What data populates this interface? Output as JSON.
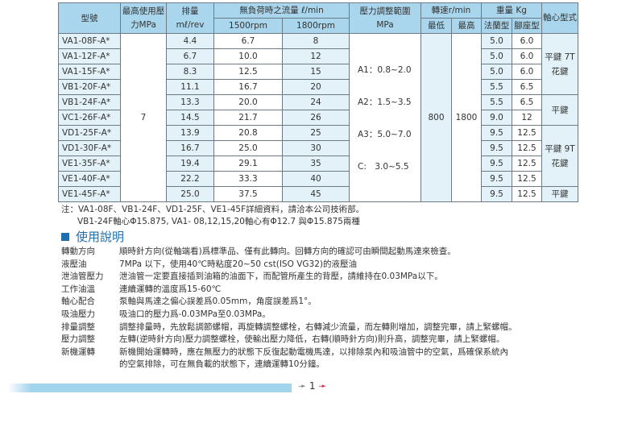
{
  "table": {
    "headers": {
      "model": "型號",
      "max_pressure": "最高使用壓力MPa",
      "displacement": "排量",
      "displacement_unit": "mℓ/rev",
      "flow": "無負荷時之流量 ℓ/min",
      "rpm1500": "1500rpm",
      "rpm1800": "1800rpm",
      "pressure_range": "壓力調整範圍",
      "pressure_range_unit": "MPa",
      "speed": "轉速r/min",
      "speed_min": "最低",
      "speed_max": "最高",
      "weight": "重量 Kg",
      "flange": "法蘭型",
      "foot": "腳座型",
      "shaft": "軸心型式"
    },
    "max_pressure": "7",
    "speed_min": "800",
    "speed_max": "1800",
    "ranges": [
      "A1：0.8~2.0",
      "A2：1.5~3.5",
      "A3：5.0~7.0",
      "C:　3.0~5.5"
    ],
    "shaft": [
      "平鍵 7T 花鍵",
      "平鍵",
      "平鍵 9T 花鍵",
      "平鍵"
    ],
    "rows": [
      {
        "model": "VA1-08F-A*",
        "disp": "4.4",
        "f1500": "6.7",
        "f1800": "8",
        "flange": "5.0",
        "foot": "6.0"
      },
      {
        "model": "VA1-12F-A*",
        "disp": "6.7",
        "f1500": "10.0",
        "f1800": "12",
        "flange": "5.0",
        "foot": "6.0"
      },
      {
        "model": "VA1-15F-A*",
        "disp": "8.3",
        "f1500": "12.5",
        "f1800": "15",
        "flange": "5.0",
        "foot": "6.0"
      },
      {
        "model": "VB1-20F-A*",
        "disp": "11.1",
        "f1500": "16.7",
        "f1800": "20",
        "flange": "5.5",
        "foot": "6.5"
      },
      {
        "model": "VB1-24F-A*",
        "disp": "13.3",
        "f1500": "20.0",
        "f1800": "24",
        "flange": "5.5",
        "foot": "6.5"
      },
      {
        "model": "VC1-26F-A*",
        "disp": "14.5",
        "f1500": "21.7",
        "f1800": "26",
        "flange": "9.0",
        "foot": "12"
      },
      {
        "model": "VD1-25F-A*",
        "disp": "13.9",
        "f1500": "20.8",
        "f1800": "25",
        "flange": "9.5",
        "foot": "12.5"
      },
      {
        "model": "VD1-30F-A*",
        "disp": "16.7",
        "f1500": "25.0",
        "f1800": "30",
        "flange": "9.5",
        "foot": "12.5"
      },
      {
        "model": "VE1-35F-A*",
        "disp": "19.4",
        "f1500": "29.1",
        "f1800": "35",
        "flange": "9.5",
        "foot": "12.5"
      },
      {
        "model": "VE1-40F-A*",
        "disp": "22.2",
        "f1500": "33.3",
        "f1800": "40",
        "flange": "9.5",
        "foot": "12.5"
      },
      {
        "model": "VE1-45F-A*",
        "disp": "25.0",
        "f1500": "37.5",
        "f1800": "45",
        "flange": "9.5",
        "foot": "12.5"
      }
    ]
  },
  "notes": [
    "注：VA1-08F、VB1-24F、VD1-25F、VE1-45F詳細資料，請洽本公司技術部。",
    "VB1-24F軸心Φ15.875, VA1- 08,12,15,20軸心有Φ12.7 與Φ15.875兩種"
  ],
  "section_title": "使用說明",
  "instructions": [
    {
      "k": "轉動方向",
      "v": "順時針方向(從軸端看)爲標準品、僅有此轉向。回轉方向的確認可由瞬間起動馬達來檢查。"
    },
    {
      "k": "液壓油",
      "v": "7MPa 以下，使用40℃時粘度20~50 cst(ISO VG32)的液壓油"
    },
    {
      "k": "泄油管壓力",
      "v": "泄油管一定要直接插到油箱的油面下，而配管所產生的背壓，請維持在0.03MPa以下。"
    },
    {
      "k": "工作油溫",
      "v": "連續運轉的溫度爲15-60℃"
    },
    {
      "k": "軸心配合",
      "v": "泵軸與馬達之偏心誤差爲0.05mm，角度誤差爲1°。"
    },
    {
      "k": "吸油壓力",
      "v": "吸油口的壓力爲-0.03MPa至0.03MPa。"
    },
    {
      "k": "排量調整",
      "v": "調整排量時，先放鬆調節螺帽，再旋轉調整螺栓，右轉減少流量，而左轉則增加，調整完畢，請上緊螺帽。"
    },
    {
      "k": "壓力調整",
      "v": "左轉(逆時針方向)壓力調整螺栓，使輸出壓力降低，右轉(順時針方向)則升高，調整完畢，請上緊螺帽。"
    },
    {
      "k": "新機運轉",
      "v": "新機開始運轉時，應在無壓力的狀態下反復起動電機馬達，以排除泵內和吸油管中的空氣，爲確保系統內"
    },
    {
      "k": "",
      "v": "的空氣排除，可在無負載的狀態下，連續運轉10分鐘。"
    }
  ],
  "page_number": "1"
}
